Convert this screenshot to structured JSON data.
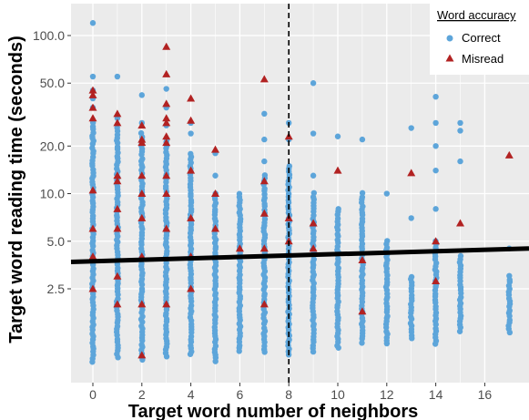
{
  "chart_data": {
    "type": "scatter",
    "xlabel": "Target word number of neighbors",
    "ylabel": "Target word reading time (seconds)",
    "x_ticks": [
      0,
      2,
      4,
      6,
      8,
      10,
      12,
      14,
      16
    ],
    "x_tick_labels": [
      "0",
      "2",
      "4",
      "6",
      "8",
      "10",
      "12",
      "14",
      "16"
    ],
    "y_scale": "log",
    "y_ticks": [
      2.5,
      5.0,
      10.0,
      20.0,
      50.0,
      100.0
    ],
    "y_tick_labels": [
      "2.5",
      "5.0",
      "10.0",
      "20.0",
      "50.0",
      "100.0"
    ],
    "xlim": [
      -1,
      18
    ],
    "ylim": [
      0.75,
      160
    ],
    "grid": true,
    "reference_line": {
      "x": 8,
      "style": "dashed"
    },
    "fit_line": {
      "x": [
        -1,
        18
      ],
      "y": [
        3.7,
        4.5
      ]
    },
    "legend": {
      "title": "Word accuracy",
      "position": "top-right",
      "entries": [
        {
          "label": "Correct",
          "color": "#5DA5DA",
          "shape": "circle"
        },
        {
          "label": "Misread",
          "color": "#B22222",
          "shape": "triangle"
        }
      ]
    },
    "series": [
      {
        "name": "Correct",
        "color": "#5DA5DA",
        "shape": "circle",
        "columns": [
          {
            "x": 0,
            "min": 0.85,
            "max": 28,
            "extra": [
              35,
              40,
              45,
              55,
              120
            ]
          },
          {
            "x": 1,
            "min": 0.9,
            "max": 26,
            "extra": [
              30,
              55
            ]
          },
          {
            "x": 2,
            "min": 0.88,
            "max": 24,
            "extra": [
              28,
              42
            ]
          },
          {
            "x": 3,
            "min": 0.92,
            "max": 22,
            "extra": [
              27,
              35,
              46
            ]
          },
          {
            "x": 4,
            "min": 0.95,
            "max": 18,
            "extra": [
              24,
              28
            ]
          },
          {
            "x": 5,
            "min": 0.85,
            "max": 10,
            "extra": [
              13,
              18
            ]
          },
          {
            "x": 6,
            "min": 1.0,
            "max": 10,
            "extra": []
          },
          {
            "x": 7,
            "min": 0.95,
            "max": 13,
            "extra": [
              16,
              22,
              32
            ]
          },
          {
            "x": 8,
            "min": 0.95,
            "max": 15,
            "extra": [
              22,
              28
            ]
          },
          {
            "x": 9,
            "min": 1.0,
            "max": 10,
            "extra": [
              13,
              24,
              50
            ]
          },
          {
            "x": 10,
            "min": 1.05,
            "max": 8,
            "extra": [
              23
            ]
          },
          {
            "x": 11,
            "min": 1.1,
            "max": 10,
            "extra": [
              22
            ]
          },
          {
            "x": 12,
            "min": 1.1,
            "max": 5,
            "extra": [
              10
            ]
          },
          {
            "x": 13,
            "min": 1.2,
            "max": 3,
            "extra": [
              7,
              26
            ]
          },
          {
            "x": 14,
            "min": 1.1,
            "max": 5,
            "extra": [
              8,
              14,
              20,
              28,
              41
            ]
          },
          {
            "x": 15,
            "min": 1.3,
            "max": 4,
            "extra": [
              16,
              25,
              28
            ]
          },
          {
            "x": 17,
            "min": 1.3,
            "max": 3,
            "extra": [
              4.5
            ]
          }
        ]
      },
      {
        "name": "Misread",
        "color": "#B22222",
        "shape": "triangle",
        "points": [
          [
            0,
            45
          ],
          [
            0,
            42
          ],
          [
            0,
            35
          ],
          [
            0,
            30
          ],
          [
            0,
            10.5
          ],
          [
            0,
            6
          ],
          [
            0,
            4
          ],
          [
            0,
            2.5
          ],
          [
            1,
            32
          ],
          [
            1,
            28
          ],
          [
            1,
            13
          ],
          [
            1,
            12
          ],
          [
            1,
            8
          ],
          [
            1,
            6
          ],
          [
            1,
            3
          ],
          [
            1,
            2
          ],
          [
            2,
            27
          ],
          [
            2,
            22
          ],
          [
            2,
            21
          ],
          [
            2,
            13
          ],
          [
            2,
            10
          ],
          [
            2,
            7
          ],
          [
            2,
            4
          ],
          [
            2,
            2
          ],
          [
            2,
            0.95
          ],
          [
            3,
            85
          ],
          [
            3,
            57
          ],
          [
            3,
            37
          ],
          [
            3,
            30
          ],
          [
            3,
            28
          ],
          [
            3,
            23
          ],
          [
            3,
            21
          ],
          [
            3,
            13
          ],
          [
            3,
            10
          ],
          [
            3,
            6
          ],
          [
            3,
            2
          ],
          [
            4,
            40
          ],
          [
            4,
            29
          ],
          [
            4,
            14
          ],
          [
            4,
            7
          ],
          [
            4,
            4
          ],
          [
            4,
            2.5
          ],
          [
            5,
            19
          ],
          [
            5,
            10
          ],
          [
            5,
            6
          ],
          [
            6,
            4.5
          ],
          [
            7,
            53
          ],
          [
            7,
            12
          ],
          [
            7,
            7.5
          ],
          [
            7,
            4.5
          ],
          [
            7,
            2
          ],
          [
            8,
            23
          ],
          [
            8,
            7
          ],
          [
            8,
            5
          ],
          [
            9,
            6.5
          ],
          [
            9,
            4.5
          ],
          [
            10,
            14
          ],
          [
            11,
            3.8
          ],
          [
            11,
            1.8
          ],
          [
            13,
            13.5
          ],
          [
            14,
            5
          ],
          [
            14,
            2.8
          ],
          [
            15,
            6.5
          ],
          [
            17,
            17.5
          ]
        ]
      }
    ]
  }
}
